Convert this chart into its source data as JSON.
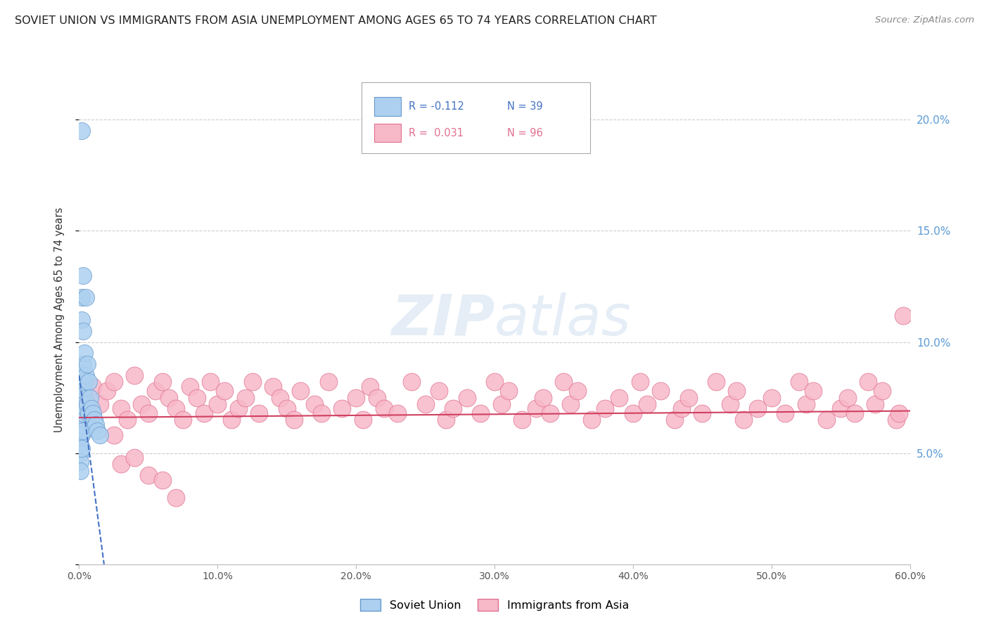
{
  "title": "SOVIET UNION VS IMMIGRANTS FROM ASIA UNEMPLOYMENT AMONG AGES 65 TO 74 YEARS CORRELATION CHART",
  "source": "Source: ZipAtlas.com",
  "ylabel": "Unemployment Among Ages 65 to 74 years",
  "xlim": [
    0,
    0.6
  ],
  "ylim": [
    0,
    0.22
  ],
  "xticks": [
    0.0,
    0.1,
    0.2,
    0.3,
    0.4,
    0.5,
    0.6
  ],
  "xticklabels": [
    "0.0%",
    "10.0%",
    "20.0%",
    "30.0%",
    "40.0%",
    "50.0%",
    "60.0%"
  ],
  "yticks": [
    0.0,
    0.05,
    0.1,
    0.15,
    0.2
  ],
  "right_yticklabels": [
    "",
    "5.0%",
    "10.0%",
    "15.0%",
    "20.0%"
  ],
  "soviet_color": "#ADD0F0",
  "soviet_edge_color": "#6699CC",
  "asia_color": "#F7B8C8",
  "asia_edge_color": "#E07090",
  "soviet_line_color": "#4472C4",
  "asia_line_color": "#D04060",
  "background_color": "#FFFFFF",
  "grid_color": "#C8C8C8",
  "watermark_color": "#D0DFF0",
  "soviet_x": [
    0.001,
    0.001,
    0.001,
    0.001,
    0.001,
    0.001,
    0.001,
    0.002,
    0.002,
    0.002,
    0.002,
    0.002,
    0.002,
    0.002,
    0.002,
    0.002,
    0.003,
    0.003,
    0.003,
    0.003,
    0.003,
    0.003,
    0.004,
    0.004,
    0.004,
    0.005,
    0.005,
    0.005,
    0.006,
    0.006,
    0.007,
    0.007,
    0.008,
    0.009,
    0.01,
    0.011,
    0.012,
    0.013,
    0.015
  ],
  "soviet_y": [
    0.068,
    0.063,
    0.058,
    0.054,
    0.05,
    0.046,
    0.042,
    0.195,
    0.12,
    0.11,
    0.085,
    0.075,
    0.068,
    0.063,
    0.058,
    0.052,
    0.13,
    0.105,
    0.09,
    0.078,
    0.068,
    0.06,
    0.095,
    0.082,
    0.072,
    0.12,
    0.085,
    0.07,
    0.09,
    0.072,
    0.082,
    0.068,
    0.075,
    0.07,
    0.068,
    0.065,
    0.063,
    0.06,
    0.058
  ],
  "asia_x": [
    0.004,
    0.008,
    0.01,
    0.015,
    0.02,
    0.025,
    0.03,
    0.035,
    0.04,
    0.045,
    0.05,
    0.055,
    0.06,
    0.065,
    0.07,
    0.075,
    0.08,
    0.085,
    0.09,
    0.095,
    0.1,
    0.105,
    0.11,
    0.115,
    0.12,
    0.125,
    0.13,
    0.14,
    0.145,
    0.15,
    0.155,
    0.16,
    0.17,
    0.175,
    0.18,
    0.19,
    0.2,
    0.205,
    0.21,
    0.215,
    0.22,
    0.23,
    0.24,
    0.25,
    0.26,
    0.265,
    0.27,
    0.28,
    0.29,
    0.3,
    0.305,
    0.31,
    0.32,
    0.33,
    0.335,
    0.34,
    0.35,
    0.355,
    0.36,
    0.37,
    0.38,
    0.39,
    0.4,
    0.405,
    0.41,
    0.42,
    0.43,
    0.435,
    0.44,
    0.45,
    0.46,
    0.47,
    0.475,
    0.48,
    0.49,
    0.5,
    0.51,
    0.52,
    0.525,
    0.53,
    0.54,
    0.55,
    0.555,
    0.56,
    0.57,
    0.575,
    0.58,
    0.59,
    0.592,
    0.595,
    0.025,
    0.03,
    0.04,
    0.05,
    0.06,
    0.07
  ],
  "asia_y": [
    0.075,
    0.068,
    0.08,
    0.072,
    0.078,
    0.082,
    0.07,
    0.065,
    0.085,
    0.072,
    0.068,
    0.078,
    0.082,
    0.075,
    0.07,
    0.065,
    0.08,
    0.075,
    0.068,
    0.082,
    0.072,
    0.078,
    0.065,
    0.07,
    0.075,
    0.082,
    0.068,
    0.08,
    0.075,
    0.07,
    0.065,
    0.078,
    0.072,
    0.068,
    0.082,
    0.07,
    0.075,
    0.065,
    0.08,
    0.075,
    0.07,
    0.068,
    0.082,
    0.072,
    0.078,
    0.065,
    0.07,
    0.075,
    0.068,
    0.082,
    0.072,
    0.078,
    0.065,
    0.07,
    0.075,
    0.068,
    0.082,
    0.072,
    0.078,
    0.065,
    0.07,
    0.075,
    0.068,
    0.082,
    0.072,
    0.078,
    0.065,
    0.07,
    0.075,
    0.068,
    0.082,
    0.072,
    0.078,
    0.065,
    0.07,
    0.075,
    0.068,
    0.082,
    0.072,
    0.078,
    0.065,
    0.07,
    0.075,
    0.068,
    0.082,
    0.072,
    0.078,
    0.065,
    0.068,
    0.112,
    0.058,
    0.045,
    0.048,
    0.04,
    0.038,
    0.03
  ]
}
